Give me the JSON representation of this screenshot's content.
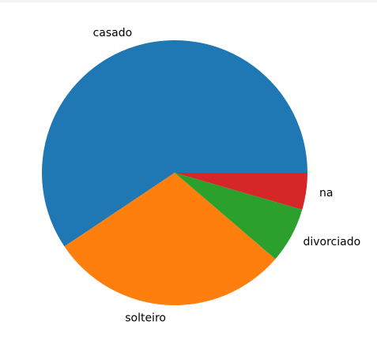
{
  "chart_data": {
    "type": "pie",
    "title": "",
    "start_angle_deg": 0,
    "direction": "counterclockwise",
    "slices": [
      {
        "label": "casado",
        "value": 0.594,
        "color": "#1f77b4"
      },
      {
        "label": "solteiro",
        "value": 0.293,
        "color": "#ff7f0e"
      },
      {
        "label": "divorciado",
        "value": 0.068,
        "color": "#2ca02c"
      },
      {
        "label": "na",
        "value": 0.045,
        "color": "#d62728"
      }
    ],
    "legend": "none",
    "labels_outside": true
  }
}
